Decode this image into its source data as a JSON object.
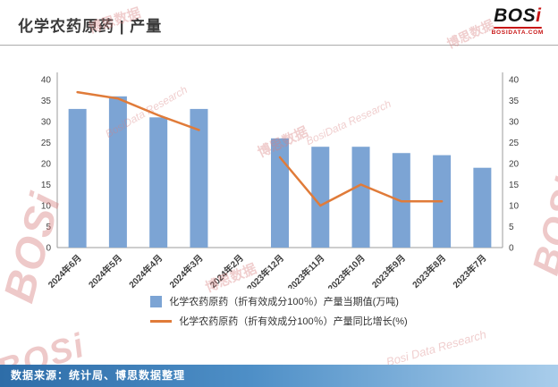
{
  "header": {
    "title": "化学农药原药 | 产量",
    "logo": {
      "bos": "BOS",
      "i": "i",
      "sub": "BOSIDATA.COM"
    }
  },
  "chart_data": {
    "type": "bar",
    "categories": [
      "2024年6月",
      "2024年5月",
      "2024年4月",
      "2024年3月",
      "2024年2月",
      "2023年12月",
      "2023年11月",
      "2023年10月",
      "2023年9月",
      "2023年8月",
      "2023年7月"
    ],
    "series": [
      {
        "name": "化学农药原药（折有效成分100％）产量当期值(万吨)",
        "type": "bar",
        "color": "#7CA4D4",
        "values": [
          33,
          36,
          31,
          33,
          null,
          26,
          24,
          24,
          22.5,
          22,
          19
        ]
      },
      {
        "name": "化学农药原药（折有效成分100％）产量同比增长(%)",
        "type": "line",
        "color": "#E07B39",
        "values": [
          37,
          35.5,
          31.5,
          28,
          null,
          21.5,
          10,
          15,
          11,
          11,
          null
        ]
      }
    ],
    "y_left": {
      "min": 0,
      "max": 40,
      "step": 5
    },
    "y_right": {
      "min": 0,
      "max": 40,
      "step": 5
    },
    "grid": false,
    "legend_position": "bottom"
  },
  "footer": {
    "text": "数据来源：统计局、博思数据整理"
  },
  "watermark": {
    "brand": "BOSi",
    "cn": "博思数据",
    "en": "BosiData Research",
    "en2": "Bosi Data Research"
  }
}
